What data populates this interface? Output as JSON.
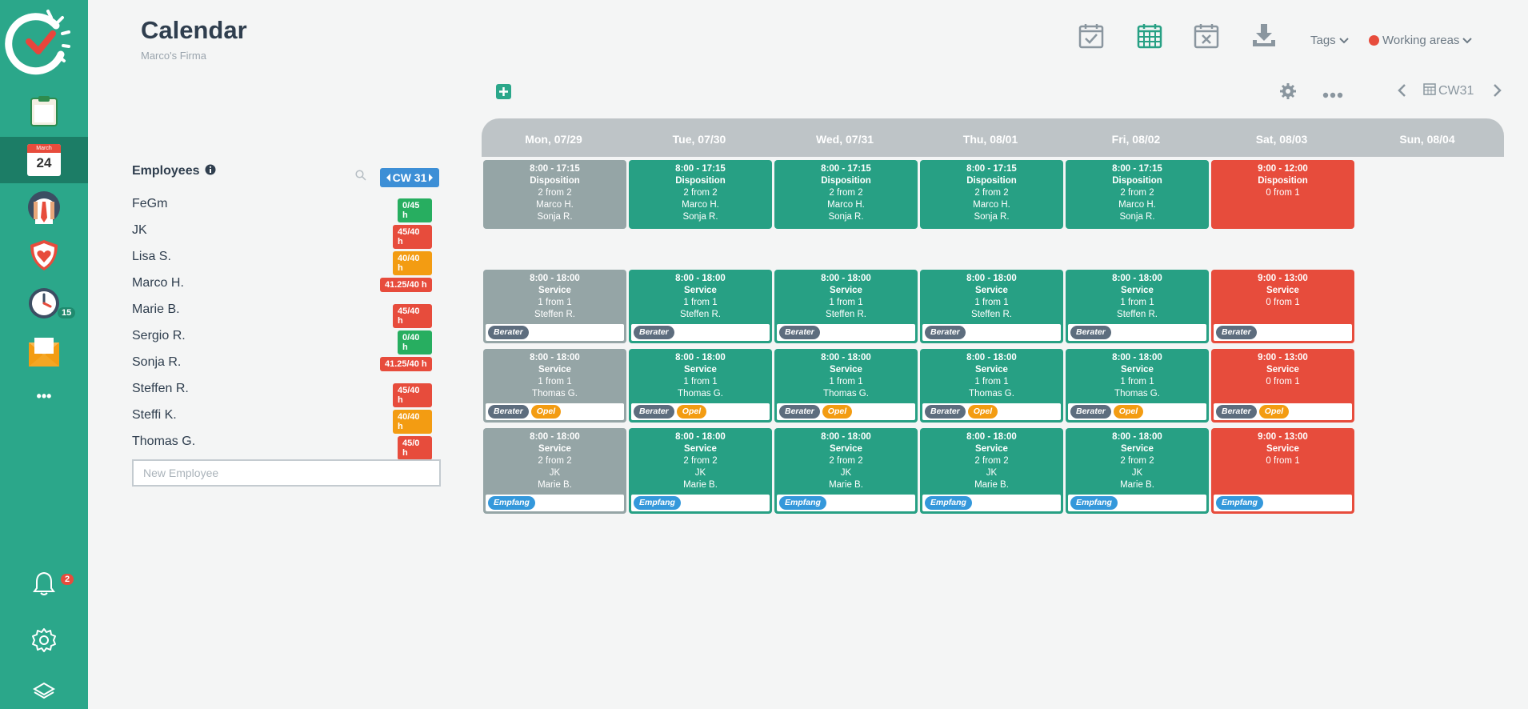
{
  "colors": {
    "sidebar": "#2ba78a",
    "sidebar_active": "#1c7d66",
    "past": "#95a5a6",
    "ok": "#27a084",
    "missing": "#e74c3c",
    "tag_berater": "#5d6d7e",
    "tag_opel": "#f39c12",
    "tag_empfang": "#3498db",
    "hours_green": "#27ae60",
    "hours_red": "#e74c3c",
    "hours_orange": "#f39c12",
    "cw_badge": "#3d8fd6"
  },
  "sidebar": {
    "items": [
      {
        "icon": "clipboard-icon"
      },
      {
        "icon": "calendar-icon",
        "month": "March",
        "day": "24"
      },
      {
        "icon": "employee-icon"
      },
      {
        "icon": "shield-heart-icon"
      },
      {
        "icon": "clock-icon",
        "badge": "15"
      },
      {
        "icon": "envelope-icon"
      },
      {
        "icon": "more-icon",
        "label": "•••"
      }
    ],
    "bottom": [
      {
        "icon": "bell-icon",
        "badge": "2"
      },
      {
        "icon": "gear-icon"
      },
      {
        "icon": "layers-icon"
      }
    ]
  },
  "header": {
    "title": "Calendar",
    "subtitle": "Marco's Firma",
    "tags_label": "Tags",
    "working_areas_label": "Working areas"
  },
  "toolbar": {
    "week_label": "CW31"
  },
  "employees": {
    "heading": "Employees",
    "cw_label": "CW 31",
    "new_placeholder": "New Employee",
    "list": [
      {
        "name": "FeGm",
        "hours": "0/45 h",
        "status": "green"
      },
      {
        "name": "JK",
        "hours": "45/40 h",
        "status": "red"
      },
      {
        "name": "Lisa S.",
        "hours": "40/40 h",
        "status": "orange"
      },
      {
        "name": "Marco H.",
        "hours": "41.25/40 h",
        "status": "red"
      },
      {
        "name": "Marie B.",
        "hours": "45/40 h",
        "status": "red"
      },
      {
        "name": "Sergio R.",
        "hours": "0/40 h",
        "status": "green"
      },
      {
        "name": "Sonja R.",
        "hours": "41.25/40 h",
        "status": "red"
      },
      {
        "name": "Steffen R.",
        "hours": "45/40 h",
        "status": "red"
      },
      {
        "name": "Steffi K.",
        "hours": "40/40 h",
        "status": "orange"
      },
      {
        "name": "Thomas G.",
        "hours": "45/0 h",
        "status": "red"
      }
    ]
  },
  "calendar": {
    "days": [
      "Mon, 07/29",
      "Tue, 07/30",
      "Wed, 07/31",
      "Thu, 08/01",
      "Fri, 08/02",
      "Sat, 08/03",
      "Sun, 08/04"
    ],
    "rows": [
      {
        "weekday": {
          "time": "8:00 - 17:15",
          "name": "Disposition",
          "count": "2 from 2",
          "people": [
            "Marco H.",
            "Sonja R."
          ]
        },
        "saturday": {
          "time": "9:00 - 12:00",
          "name": "Disposition",
          "count": "0 from 1",
          "people": []
        },
        "tags": []
      },
      {
        "weekday": {
          "time": "8:00 - 18:00",
          "name": "Service",
          "count": "1 from 1",
          "people": [
            "Steffen R."
          ]
        },
        "saturday": {
          "time": "9:00 - 13:00",
          "name": "Service",
          "count": "0 from 1",
          "people": []
        },
        "tags": [
          "Berater"
        ]
      },
      {
        "weekday": {
          "time": "8:00 - 18:00",
          "name": "Service",
          "count": "1 from 1",
          "people": [
            "Thomas G."
          ]
        },
        "saturday": {
          "time": "9:00 - 13:00",
          "name": "Service",
          "count": "0 from 1",
          "people": []
        },
        "tags": [
          "Berater",
          "Opel"
        ]
      },
      {
        "weekday": {
          "time": "8:00 - 18:00",
          "name": "Service",
          "count": "2 from 2",
          "people": [
            "JK",
            "Marie B."
          ]
        },
        "saturday": {
          "time": "9:00 - 13:00",
          "name": "Service",
          "count": "0 from 1",
          "people": []
        },
        "tags": [
          "Empfang"
        ]
      }
    ]
  }
}
